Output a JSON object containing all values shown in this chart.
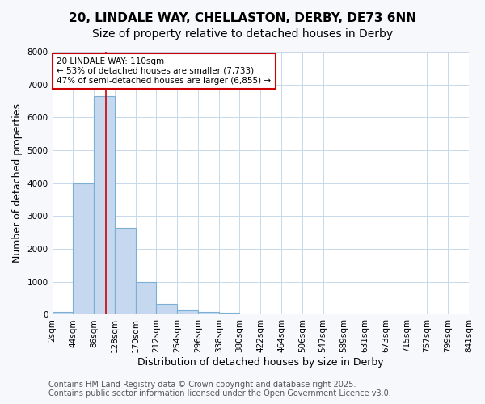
{
  "title_line1": "20, LINDALE WAY, CHELLASTON, DERBY, DE73 6NN",
  "title_line2": "Size of property relative to detached houses in Derby",
  "xlabel": "Distribution of detached houses by size in Derby",
  "ylabel": "Number of detached properties",
  "bar_heights": [
    75,
    4000,
    6650,
    2650,
    1000,
    340,
    130,
    75,
    50,
    0,
    0,
    0,
    0,
    0,
    0,
    0,
    0,
    0,
    0,
    0
  ],
  "tick_labels": [
    "2sqm",
    "44sqm",
    "86sqm",
    "128sqm",
    "170sqm",
    "212sqm",
    "254sqm",
    "296sqm",
    "338sqm",
    "380sqm",
    "422sqm",
    "464sqm",
    "506sqm",
    "547sqm",
    "589sqm",
    "631sqm",
    "673sqm",
    "715sqm",
    "757sqm",
    "799sqm",
    "841sqm"
  ],
  "n_bins": 20,
  "ylim": [
    0,
    8000
  ],
  "yticks": [
    0,
    1000,
    2000,
    3000,
    4000,
    5000,
    6000,
    7000,
    8000
  ],
  "marker_bin": 2.57,
  "marker_color": "#cc0000",
  "bar_color": "#c5d8f0",
  "bar_edge_color": "#7bafd4",
  "bar_edge_width": 0.8,
  "annotation_text": "20 LINDALE WAY: 110sqm\n← 53% of detached houses are smaller (7,733)\n47% of semi-detached houses are larger (6,855) →",
  "annotation_box_color": "#ffffff",
  "annotation_border_color": "#cc0000",
  "background_color": "#f7f8fc",
  "plot_background": "#ffffff",
  "grid_color": "#c8d8ec",
  "footer_line1": "Contains HM Land Registry data © Crown copyright and database right 2025.",
  "footer_line2": "Contains public sector information licensed under the Open Government Licence v3.0.",
  "title_fontsize": 11,
  "subtitle_fontsize": 10,
  "label_fontsize": 9,
  "tick_fontsize": 7.5,
  "footer_fontsize": 7
}
